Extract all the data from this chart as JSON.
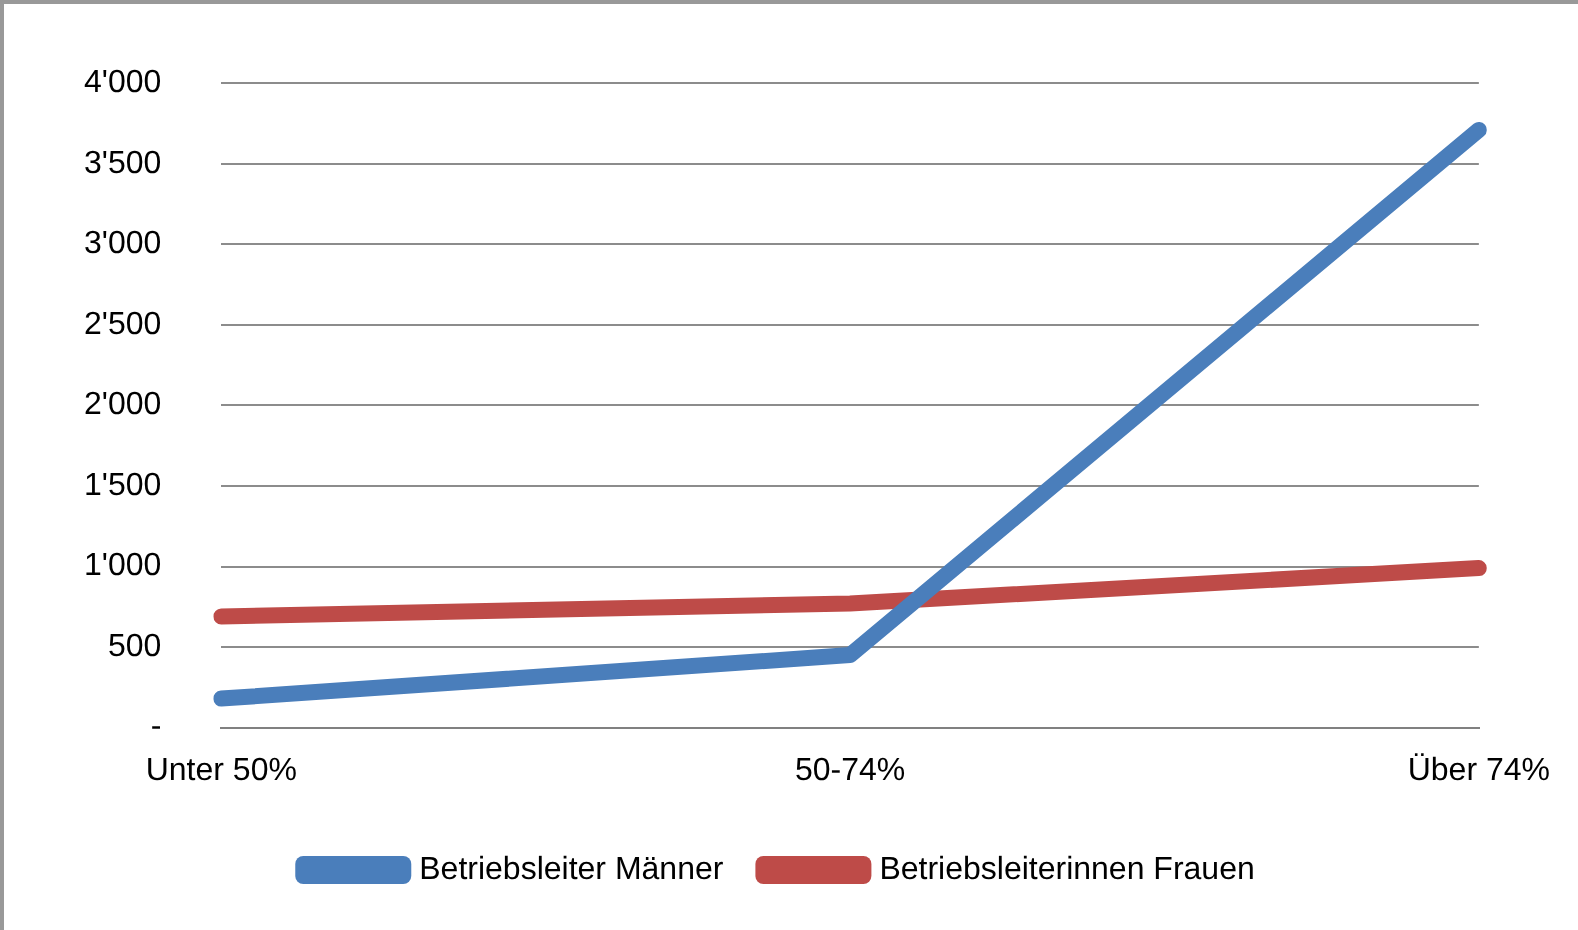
{
  "chart_data": {
    "type": "line",
    "categories": [
      "Unter 50%",
      "50-74%",
      "Über 74%"
    ],
    "series": [
      {
        "name": "Betriebsleiter Männer",
        "color": "#4a7ebb",
        "values": [
          180,
          450,
          3710
        ]
      },
      {
        "name": "Betriebsleiterinnen Frauen",
        "color": "#be4b48",
        "values": [
          690,
          770,
          990
        ]
      }
    ],
    "ylim": [
      0,
      4000
    ],
    "yticks": [
      {
        "value": 0,
        "label": "-"
      },
      {
        "value": 500,
        "label": "500"
      },
      {
        "value": 1000,
        "label": "1'000"
      },
      {
        "value": 1500,
        "label": "1'500"
      },
      {
        "value": 2000,
        "label": "2'000"
      },
      {
        "value": 2500,
        "label": "2'500"
      },
      {
        "value": 3000,
        "label": "3'000"
      },
      {
        "value": 3500,
        "label": "3'500"
      },
      {
        "value": 4000,
        "label": "4'000"
      }
    ],
    "grid": "y",
    "legend": "bottom",
    "marker": "none",
    "line_style": "solid"
  }
}
